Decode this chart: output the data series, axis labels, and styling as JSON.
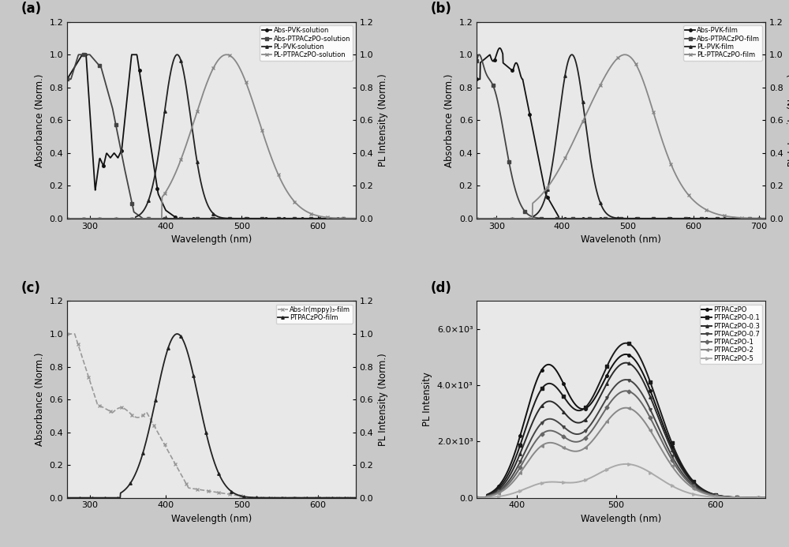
{
  "panel_a": {
    "label": "(a)",
    "xlabel": "Wavelength (nm)",
    "ylabel_left": "Absorbance (Norm.)",
    "ylabel_right": "PL Intensity (Norm.)",
    "xlim": [
      270,
      650
    ],
    "ylim": [
      0.0,
      1.2
    ],
    "xticks": [
      300,
      400,
      500,
      600
    ],
    "yticks": [
      0.0,
      0.2,
      0.4,
      0.6,
      0.8,
      1.0,
      1.2
    ]
  },
  "panel_b": {
    "label": "(b)",
    "xlabel": "Wavelenoth (nm)",
    "ylabel_left": "Absorbance (Norm.)",
    "ylabel_right": "PL Intensity (Norm.)",
    "xlim": [
      270,
      710
    ],
    "ylim": [
      0.0,
      1.2
    ],
    "xticks": [
      300,
      400,
      500,
      600,
      700
    ],
    "yticks": [
      0.0,
      0.2,
      0.4,
      0.6,
      0.8,
      1.0,
      1.2
    ]
  },
  "panel_c": {
    "label": "(c)",
    "xlabel": "Wavelength (nm)",
    "ylabel_left": "Absorbance (Norm.)",
    "ylabel_right": "PL Intensity (Norm.)",
    "xlim": [
      270,
      650
    ],
    "ylim": [
      0.0,
      1.2
    ],
    "xticks": [
      300,
      400,
      500,
      600
    ],
    "yticks": [
      0.0,
      0.2,
      0.4,
      0.6,
      0.8,
      1.0,
      1.2
    ]
  },
  "panel_d": {
    "label": "(d)",
    "xlabel": "Wavelength (nm)",
    "ylabel_left": "PL Intensity",
    "xlim": [
      360,
      650
    ],
    "ylim": [
      0,
      7000
    ],
    "xticks": [
      400,
      500,
      600
    ],
    "series_labels": [
      "PTPACzPO",
      "PTPACzPO-0.1",
      "PTPACzPO-0.3",
      "PTPACzPO-0.7",
      "PTPACzPO-1",
      "PTPACzPO-2",
      "PTPACzPO-5"
    ],
    "peak_vals": [
      5100,
      5500,
      4800,
      4200,
      3800,
      3200,
      1200
    ],
    "shoulder_vals": [
      4500,
      3800,
      3200,
      2600,
      2200,
      1800,
      500
    ],
    "peak_wls": [
      510,
      510,
      510,
      510,
      510,
      510,
      510
    ],
    "shoulder_wls": [
      430,
      430,
      430,
      430,
      430,
      430,
      430
    ]
  },
  "bg_color": "#c8c8c8",
  "panel_bg": "#e8e8e8"
}
